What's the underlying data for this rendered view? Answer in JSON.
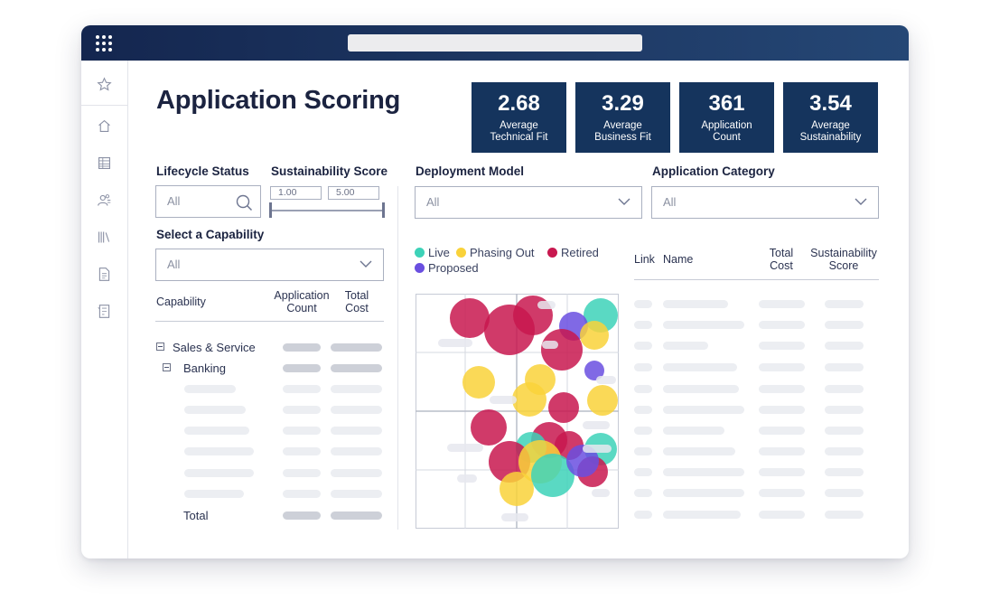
{
  "header": {
    "title": "Application Scoring"
  },
  "kpis": [
    {
      "value": "2.68",
      "line1": "Average",
      "line2": "Technical Fit"
    },
    {
      "value": "3.29",
      "line1": "Average",
      "line2": "Business Fit"
    },
    {
      "value": "361",
      "line1": "Application",
      "line2": "Count"
    },
    {
      "value": "3.54",
      "line1": "Average",
      "line2": "Sustainability"
    }
  ],
  "filters": {
    "lifecycle": {
      "label": "Lifecycle Status",
      "value": "All"
    },
    "sustainability": {
      "label": "Sustainability Score",
      "min": "1.00",
      "max": "5.00"
    },
    "deployment": {
      "label": "Deployment Model",
      "value": "All"
    },
    "category": {
      "label": "Application Category",
      "value": "All"
    },
    "capability": {
      "label": "Select a Capability",
      "value": "All"
    }
  },
  "capability_table": {
    "col_capability": "Capability",
    "col_count_1": "Application",
    "col_count_2": "Count",
    "col_cost_1": "Total",
    "col_cost_2": "Cost",
    "row1": "Sales & Service",
    "row2": "Banking",
    "total": "Total"
  },
  "legend": [
    {
      "label": "Live",
      "color": "#3dd2b8"
    },
    {
      "label": "Phasing Out",
      "color": "#f9d23a"
    },
    {
      "label": "Retired",
      "color": "#c8184f"
    },
    {
      "label": "Proposed",
      "color": "#6a4fe0"
    }
  ],
  "app_table": {
    "col_link": "Link",
    "col_name": "Name",
    "col_cost_1": "Total",
    "col_cost_2": "Cost",
    "col_sus_1": "Sustainability",
    "col_sus_2": "Score"
  },
  "colors": {
    "header_dark": "#14264f",
    "kpi_bg": "#15345d"
  }
}
